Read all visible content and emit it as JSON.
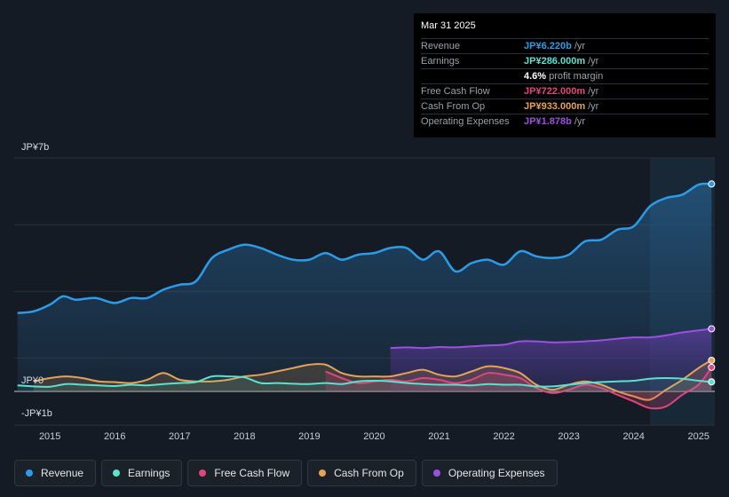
{
  "chart_data": {
    "type": "area",
    "title": "",
    "y_axis_labels": [
      "JP¥7b",
      "JP¥0",
      "-JP¥1b"
    ],
    "ylim": [
      -1,
      7
    ],
    "x_ticks": [
      "2015",
      "2016",
      "2017",
      "2018",
      "2019",
      "2020",
      "2021",
      "2022",
      "2023",
      "2024",
      "2025"
    ],
    "x_range": [
      2014.45,
      2025.25
    ],
    "forecast_start": 2024.25,
    "series": [
      {
        "name": "Revenue",
        "color": "#2d9be8",
        "unit": "JP¥b",
        "x": [
          2014.5,
          2014.75,
          2015.0,
          2015.2,
          2015.4,
          2015.7,
          2016.0,
          2016.25,
          2016.5,
          2016.75,
          2017.0,
          2017.25,
          2017.5,
          2017.75,
          2018.0,
          2018.25,
          2018.5,
          2018.75,
          2019.0,
          2019.25,
          2019.5,
          2019.75,
          2020.0,
          2020.25,
          2020.5,
          2020.75,
          2021.0,
          2021.25,
          2021.5,
          2021.75,
          2022.0,
          2022.25,
          2022.5,
          2022.75,
          2023.0,
          2023.25,
          2023.5,
          2023.75,
          2024.0,
          2024.25,
          2024.5,
          2024.75,
          2025.0,
          2025.2
        ],
        "values": [
          2.35,
          2.4,
          2.6,
          2.85,
          2.75,
          2.8,
          2.65,
          2.8,
          2.8,
          3.05,
          3.2,
          3.3,
          4.0,
          4.25,
          4.4,
          4.3,
          4.1,
          3.95,
          3.95,
          4.15,
          3.95,
          4.1,
          4.15,
          4.3,
          4.3,
          3.95,
          4.2,
          3.6,
          3.85,
          3.95,
          3.8,
          4.2,
          4.05,
          4.0,
          4.1,
          4.5,
          4.55,
          4.85,
          4.95,
          5.55,
          5.8,
          5.9,
          6.2,
          6.22
        ]
      },
      {
        "name": "Earnings",
        "color": "#5ce0d0",
        "unit": "JP¥b",
        "x": [
          2014.5,
          2014.75,
          2015.0,
          2015.25,
          2015.5,
          2015.75,
          2016.0,
          2016.25,
          2016.5,
          2016.75,
          2017.0,
          2017.25,
          2017.5,
          2017.75,
          2018.0,
          2018.25,
          2018.5,
          2018.75,
          2019.0,
          2019.25,
          2019.5,
          2019.75,
          2020.0,
          2020.25,
          2020.5,
          2020.75,
          2021.0,
          2021.25,
          2021.5,
          2021.75,
          2022.0,
          2022.25,
          2022.5,
          2022.75,
          2023.0,
          2023.25,
          2023.5,
          2023.75,
          2024.0,
          2024.25,
          2024.5,
          2024.75,
          2025.0,
          2025.2
        ],
        "values": [
          0.18,
          0.15,
          0.14,
          0.22,
          0.2,
          0.18,
          0.16,
          0.2,
          0.18,
          0.22,
          0.25,
          0.28,
          0.45,
          0.45,
          0.42,
          0.25,
          0.25,
          0.23,
          0.22,
          0.25,
          0.22,
          0.3,
          0.32,
          0.3,
          0.25,
          0.22,
          0.2,
          0.2,
          0.18,
          0.22,
          0.2,
          0.2,
          0.15,
          0.15,
          0.2,
          0.25,
          0.28,
          0.3,
          0.32,
          0.38,
          0.4,
          0.38,
          0.32,
          0.286
        ]
      },
      {
        "name": "Free Cash Flow",
        "color": "#e0457b",
        "unit": "JP¥b",
        "x": [
          2019.25,
          2019.5,
          2019.75,
          2020.0,
          2020.25,
          2020.5,
          2020.75,
          2021.0,
          2021.25,
          2021.5,
          2021.75,
          2022.0,
          2022.25,
          2022.5,
          2022.75,
          2023.0,
          2023.25,
          2023.5,
          2023.75,
          2024.0,
          2024.25,
          2024.5,
          2024.75,
          2025.0,
          2025.2
        ],
        "values": [
          0.6,
          0.4,
          0.25,
          0.3,
          0.35,
          0.3,
          0.4,
          0.35,
          0.25,
          0.35,
          0.55,
          0.5,
          0.4,
          0.1,
          -0.05,
          0.05,
          0.2,
          0.1,
          -0.1,
          -0.3,
          -0.5,
          -0.45,
          -0.1,
          0.2,
          0.722
        ]
      },
      {
        "name": "Cash From Op",
        "color": "#e6a355",
        "unit": "JP¥b",
        "x": [
          2014.75,
          2015.0,
          2015.25,
          2015.5,
          2015.75,
          2016.0,
          2016.25,
          2016.5,
          2016.75,
          2017.0,
          2017.25,
          2017.5,
          2017.75,
          2018.0,
          2018.25,
          2018.5,
          2018.75,
          2019.0,
          2019.25,
          2019.5,
          2019.75,
          2020.0,
          2020.25,
          2020.5,
          2020.75,
          2021.0,
          2021.25,
          2021.5,
          2021.75,
          2022.0,
          2022.25,
          2022.5,
          2022.75,
          2023.0,
          2023.25,
          2023.5,
          2023.75,
          2024.0,
          2024.25,
          2024.5,
          2024.75,
          2025.0,
          2025.2
        ],
        "values": [
          0.3,
          0.4,
          0.45,
          0.4,
          0.3,
          0.28,
          0.25,
          0.35,
          0.55,
          0.35,
          0.3,
          0.3,
          0.35,
          0.45,
          0.5,
          0.6,
          0.7,
          0.8,
          0.8,
          0.55,
          0.45,
          0.45,
          0.45,
          0.55,
          0.65,
          0.5,
          0.45,
          0.6,
          0.75,
          0.7,
          0.55,
          0.2,
          0.05,
          0.2,
          0.3,
          0.2,
          0.0,
          -0.15,
          -0.25,
          0.05,
          0.35,
          0.7,
          0.933
        ]
      },
      {
        "name": "Operating Expenses",
        "color": "#9b51e0",
        "unit": "JP¥b",
        "x": [
          2020.25,
          2020.5,
          2020.75,
          2021.0,
          2021.25,
          2021.5,
          2021.75,
          2022.0,
          2022.25,
          2022.5,
          2022.75,
          2023.0,
          2023.25,
          2023.5,
          2023.75,
          2024.0,
          2024.25,
          2024.5,
          2024.75,
          2025.0,
          2025.2
        ],
        "values": [
          1.3,
          1.32,
          1.3,
          1.33,
          1.32,
          1.35,
          1.38,
          1.4,
          1.5,
          1.5,
          1.47,
          1.48,
          1.5,
          1.53,
          1.58,
          1.62,
          1.62,
          1.68,
          1.77,
          1.83,
          1.878
        ]
      }
    ]
  },
  "tooltip": {
    "date": "Mar 31 2025",
    "rows": [
      {
        "label": "Revenue",
        "value": "JP¥6.220b",
        "unit": "/yr",
        "color": "#2d9be8"
      },
      {
        "label": "Earnings",
        "value": "JP¥286.000m",
        "unit": "/yr",
        "color": "#5ce0d0"
      },
      {
        "label": "",
        "value": "4.6%",
        "unit": "profit margin",
        "color": "#ffffff"
      },
      {
        "label": "Free Cash Flow",
        "value": "JP¥722.000m",
        "unit": "/yr",
        "color": "#e0457b"
      },
      {
        "label": "Cash From Op",
        "value": "JP¥933.000m",
        "unit": "/yr",
        "color": "#e6a355"
      },
      {
        "label": "Operating Expenses",
        "value": "JP¥1.878b",
        "unit": "/yr",
        "color": "#9b51e0"
      }
    ]
  },
  "legend": [
    {
      "label": "Revenue",
      "color": "#2d9be8"
    },
    {
      "label": "Earnings",
      "color": "#5ce0d0"
    },
    {
      "label": "Free Cash Flow",
      "color": "#e0457b"
    },
    {
      "label": "Cash From Op",
      "color": "#e6a355"
    },
    {
      "label": "Operating Expenses",
      "color": "#9b51e0"
    }
  ]
}
